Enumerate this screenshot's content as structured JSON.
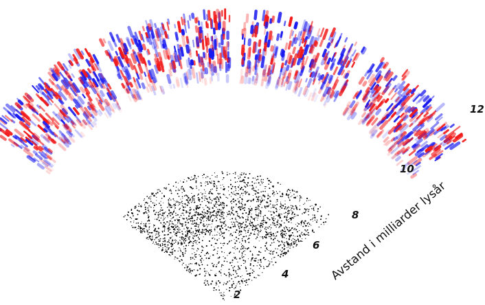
{
  "distance_labels": [
    "2",
    "4",
    "6",
    "8",
    "10",
    "12"
  ],
  "axis_label": "Avstand i milliarder lysår"
}
